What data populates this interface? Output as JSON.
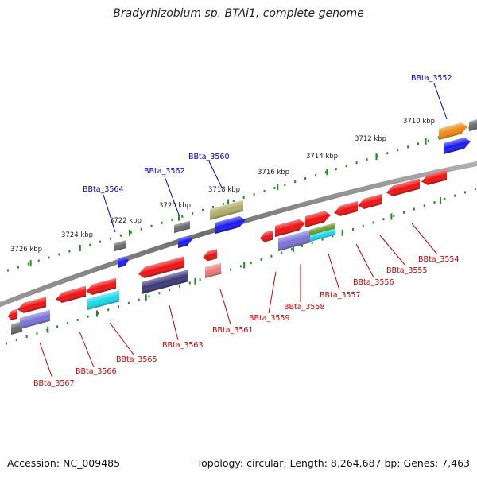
{
  "title": "Bradyrhizobium sp. BTAi1, complete genome",
  "accession_text": "Accession: NC_009485",
  "topology_text": "Topology: circular; Length: 8,264,687 bp; Genes: 7,463",
  "tick_labels": [
    "3726 kbp",
    "3724 kbp",
    "3722 kbp",
    "3720 kbp",
    "3718 kbp",
    "3716 kbp",
    "3714 kbp",
    "3712 kbp",
    "3710 kbp"
  ],
  "genes_top": [
    "BBta_3552",
    "BBta_3560",
    "BBta_3562",
    "BBta_3564"
  ],
  "genes_bottom": [
    "BBta_3554",
    "BBta_3555",
    "BBta_3556",
    "BBta_3557",
    "BBta_3558",
    "BBta_3559",
    "BBta_3561",
    "BBta_3563",
    "BBta_3565",
    "BBta_3566",
    "BBta_3567"
  ],
  "colors": {
    "top_label": "#0000cc",
    "bottom_label": "#cc0000",
    "tick": "#228b22",
    "backbone": "#7a7a7a",
    "gene_red": "#ee1111",
    "gene_blue": "#1a1aee",
    "gene_purple": "#7b72d6",
    "gene_navy": "#3c3878",
    "gene_cyan": "#19d8e8",
    "gene_gray": "#6a6a6a",
    "gene_olive": "#b3ad6a",
    "gene_orange": "#f08a10",
    "gene_green": "#6a9a2a",
    "gene_pink": "#ee7a7a"
  }
}
